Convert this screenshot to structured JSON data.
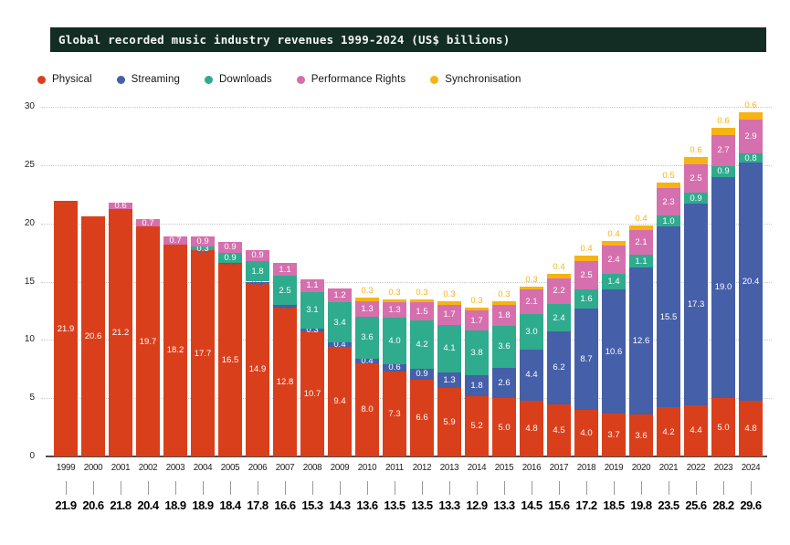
{
  "title": "Global recorded music industry revenues 1999-2024 (US$ billions)",
  "colors": {
    "title_bar_bg": "#132D25",
    "title_text": "#F2F5F2",
    "physical": "#DA3F1B",
    "streaming": "#455FA9",
    "downloads": "#2FAB8D",
    "performance_rights": "#D66FAE",
    "synchronisation": "#F6B313",
    "grid": "#C8C8C8",
    "axis": "#4D4D4D",
    "segment_label_text": "#FFFFFF"
  },
  "legend": [
    {
      "label": "Physical",
      "color": "#DA3F1B"
    },
    {
      "label": "Streaming",
      "color": "#455FA9"
    },
    {
      "label": "Downloads",
      "color": "#2FAB8D"
    },
    {
      "label": "Performance Rights",
      "color": "#D66FAE"
    },
    {
      "label": "Synchronisation",
      "color": "#F6B313"
    }
  ],
  "chart_data": {
    "type": "bar",
    "stacked": true,
    "title": "Global recorded music industry revenues 1999-2024 (US$ billions)",
    "xlabel": "",
    "ylabel": "",
    "ylim": [
      0,
      30
    ],
    "yticks": [
      0,
      5,
      10,
      15,
      20,
      25,
      30
    ],
    "grid": "horizontal-dotted",
    "legend_position": "top-left",
    "categories": [
      "1999",
      "2000",
      "2001",
      "2002",
      "2003",
      "2004",
      "2005",
      "2006",
      "2007",
      "2008",
      "2009",
      "2010",
      "2011",
      "2012",
      "2013",
      "2014",
      "2015",
      "2016",
      "2017",
      "2018",
      "2019",
      "2020",
      "2021",
      "2022",
      "2023",
      "2024"
    ],
    "series": [
      {
        "name": "Physical",
        "color": "#DA3F1B",
        "values": [
          21.9,
          20.6,
          21.2,
          19.7,
          18.2,
          17.7,
          16.5,
          14.9,
          12.8,
          10.7,
          9.4,
          8.0,
          7.3,
          6.6,
          5.9,
          5.2,
          5.0,
          4.8,
          4.5,
          4.0,
          3.7,
          3.6,
          4.2,
          4.4,
          5.0,
          4.8
        ]
      },
      {
        "name": "Streaming",
        "color": "#455FA9",
        "values": [
          null,
          null,
          null,
          null,
          null,
          0.0,
          0.1,
          0.1,
          0.2,
          0.3,
          0.4,
          0.4,
          0.6,
          0.9,
          1.3,
          1.8,
          2.6,
          4.4,
          6.2,
          8.7,
          10.6,
          12.6,
          15.5,
          17.3,
          19.0,
          20.4
        ]
      },
      {
        "name": "Downloads",
        "color": "#2FAB8D",
        "values": [
          null,
          null,
          null,
          null,
          null,
          0.3,
          0.9,
          1.8,
          2.5,
          3.1,
          3.4,
          3.6,
          4.0,
          4.2,
          4.1,
          3.8,
          3.6,
          3.0,
          2.4,
          1.6,
          1.4,
          1.1,
          1.0,
          0.9,
          0.9,
          0.8
        ]
      },
      {
        "name": "Performance Rights",
        "color": "#D66FAE",
        "values": [
          null,
          null,
          0.6,
          0.7,
          0.7,
          0.9,
          0.9,
          0.9,
          1.1,
          1.1,
          1.2,
          1.3,
          1.3,
          1.5,
          1.7,
          1.7,
          1.8,
          2.1,
          2.2,
          2.5,
          2.4,
          2.1,
          2.3,
          2.5,
          2.7,
          2.9
        ]
      },
      {
        "name": "Synchronisation",
        "color": "#F6B313",
        "values": [
          null,
          null,
          null,
          null,
          null,
          null,
          null,
          null,
          null,
          null,
          null,
          0.3,
          0.3,
          0.3,
          0.3,
          0.3,
          0.3,
          0.3,
          0.4,
          0.4,
          0.4,
          0.4,
          0.5,
          0.6,
          0.6,
          0.6
        ]
      }
    ],
    "totals": [
      21.9,
      20.6,
      21.8,
      20.4,
      18.9,
      18.9,
      18.4,
      17.8,
      16.6,
      15.3,
      14.3,
      13.6,
      13.5,
      13.5,
      13.3,
      12.9,
      13.3,
      14.5,
      15.6,
      17.2,
      18.5,
      19.8,
      23.5,
      25.6,
      28.2,
      29.6
    ]
  }
}
